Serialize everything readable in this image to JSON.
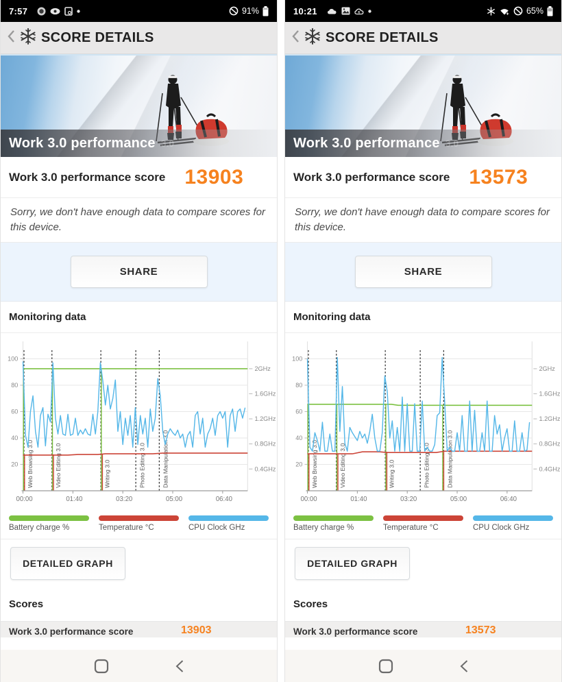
{
  "accent_orange": "#f6821f",
  "phones": [
    {
      "status": {
        "time": "7:57",
        "battery_pct": "91%"
      },
      "header": {
        "title": "SCORE DETAILS"
      },
      "hero": {
        "title": "Work 3.0 performance",
        "watermark": "3.0"
      },
      "score": {
        "label": "Work 3.0 performance score",
        "value": "13903"
      },
      "notice": "Sorry, we don't have enough data to compare scores for this device.",
      "share_label": "SHARE",
      "monitoring_label": "Monitoring data",
      "detailed_graph_label": "DETAILED GRAPH",
      "scores_label": "Scores",
      "bottom_row": {
        "label": "Work 3.0 performance score",
        "value": "13903"
      }
    },
    {
      "status": {
        "time": "10:21",
        "battery_pct": "65%"
      },
      "header": {
        "title": "SCORE DETAILS"
      },
      "hero": {
        "title": "Work 3.0 performance",
        "watermark": "3.0"
      },
      "score": {
        "label": "Work 3.0 performance score",
        "value": "13573"
      },
      "notice": "Sorry, we don't have enough data to compare scores for this device.",
      "share_label": "SHARE",
      "monitoring_label": "Monitoring data",
      "detailed_graph_label": "DETAILED GRAPH",
      "scores_label": "Scores",
      "bottom_row": {
        "label": "Work 3.0 performance score",
        "value": "13573"
      }
    }
  ],
  "chart_data": [
    {
      "type": "line",
      "title": "Monitoring data (left device)",
      "xmax": 450,
      "ymax": 110,
      "x_ticks": [
        {
          "label": "00:00",
          "t": 0
        },
        {
          "label": "01:40",
          "t": 100
        },
        {
          "label": "03:20",
          "t": 200
        },
        {
          "label": "05:00",
          "t": 300
        },
        {
          "label": "06:40",
          "t": 400
        }
      ],
      "left_ticks": [
        20,
        40,
        60,
        80,
        100
      ],
      "right_ticks": [
        {
          "label": "2GHz",
          "v": 92.5
        },
        {
          "label": "1.6GHz",
          "v": 73.5
        },
        {
          "label": "1.2GHz",
          "v": 54.5
        },
        {
          "label": "0.8GHz",
          "v": 35.5
        },
        {
          "label": "0.4GHz",
          "v": 16.5
        }
      ],
      "phases": [
        {
          "label": "Web Browsing 3.0",
          "t": 2
        },
        {
          "label": "Video Editing 3.0",
          "t": 58
        },
        {
          "label": "Writing 3.0",
          "t": 156
        },
        {
          "label": "Photo Editing 3.0",
          "t": 226
        },
        {
          "label": "Data Manipulation 3.0",
          "t": 273
        }
      ],
      "legend": [
        {
          "label": "Battery charge %",
          "color": "#7cc142"
        },
        {
          "label": "Temperature °C",
          "color": "#cc4437"
        },
        {
          "label": "CPU Clock GHz",
          "color": "#55b7e8"
        }
      ],
      "battery_points": [
        [
          0,
          92.5
        ],
        [
          450,
          92.5
        ]
      ],
      "temperature_points": [
        [
          0,
          27
        ],
        [
          90,
          27
        ],
        [
          110,
          27.5
        ],
        [
          150,
          27.5
        ],
        [
          165,
          28
        ],
        [
          260,
          28
        ],
        [
          280,
          28.5
        ],
        [
          450,
          28.5
        ]
      ],
      "green_vlines": [
        {
          "t": 1,
          "v": 92.5
        },
        {
          "t": 59,
          "v": 92.5
        },
        {
          "t": 157,
          "v": 92.5
        }
      ],
      "red_vlines": [
        {
          "t": 1,
          "v": 27
        },
        {
          "t": 59,
          "v": 27.5
        },
        {
          "t": 157,
          "v": 28
        }
      ],
      "cpu": {
        "dt": 5,
        "values": [
          98,
          42,
          33,
          60,
          72,
          45,
          33,
          57,
          63,
          34,
          58,
          52,
          97,
          55,
          43,
          57,
          43,
          42,
          58,
          42,
          43,
          55,
          42,
          46,
          43,
          47,
          43,
          42,
          58,
          43,
          60,
          97,
          83,
          65,
          80,
          62,
          70,
          84,
          45,
          60,
          35,
          55,
          42,
          57,
          33,
          63,
          35,
          57,
          43,
          55,
          33,
          62,
          45,
          55,
          85,
          72,
          45,
          35,
          43,
          47,
          44,
          42,
          46,
          40,
          43,
          33,
          42,
          45,
          33,
          57,
          60,
          43,
          55,
          33,
          43,
          47,
          55,
          42,
          57,
          60,
          55,
          60,
          33,
          57,
          62,
          45,
          60,
          62,
          55,
          63
        ]
      }
    },
    {
      "type": "line",
      "title": "Monitoring data (right device)",
      "xmax": 450,
      "ymax": 110,
      "x_ticks": [
        {
          "label": "00:00",
          "t": 0
        },
        {
          "label": "01:40",
          "t": 100
        },
        {
          "label": "03:20",
          "t": 200
        },
        {
          "label": "05:00",
          "t": 300
        },
        {
          "label": "06:40",
          "t": 400
        }
      ],
      "left_ticks": [
        20,
        40,
        60,
        80,
        100
      ],
      "right_ticks": [
        {
          "label": "2GHz",
          "v": 92.5
        },
        {
          "label": "1.6GHz",
          "v": 73.5
        },
        {
          "label": "1.2GHz",
          "v": 54.5
        },
        {
          "label": "0.8GHz",
          "v": 35.5
        },
        {
          "label": "0.4GHz",
          "v": 16.5
        }
      ],
      "phases": [
        {
          "label": "Web Browsing 3.0",
          "t": 2
        },
        {
          "label": "Video Editing 3.0",
          "t": 58
        },
        {
          "label": "Writing 3.0",
          "t": 156
        },
        {
          "label": "Photo Editing 3.0",
          "t": 226
        },
        {
          "label": "Data Manipulation 3.0",
          "t": 273
        }
      ],
      "legend": [
        {
          "label": "Battery charge %",
          "color": "#7cc142"
        },
        {
          "label": "Temperature °C",
          "color": "#cc4437"
        },
        {
          "label": "CPU Clock GHz",
          "color": "#55b7e8"
        }
      ],
      "battery_points": [
        [
          0,
          65.5
        ],
        [
          168,
          65.5
        ],
        [
          182,
          64.8
        ],
        [
          450,
          64.8
        ]
      ],
      "temperature_points": [
        [
          0,
          28
        ],
        [
          90,
          28
        ],
        [
          110,
          29.5
        ],
        [
          145,
          29.5
        ],
        [
          160,
          29
        ],
        [
          258,
          29
        ],
        [
          275,
          30
        ],
        [
          450,
          30
        ]
      ],
      "green_vlines": [
        {
          "t": 1,
          "v": 65.5
        },
        {
          "t": 59,
          "v": 65.5
        },
        {
          "t": 157,
          "v": 65
        },
        {
          "t": 271,
          "v": 65
        }
      ],
      "red_vlines": [
        {
          "t": 1,
          "v": 28
        },
        {
          "t": 59,
          "v": 28
        },
        {
          "t": 157,
          "v": 29.5
        },
        {
          "t": 271,
          "v": 29.5
        }
      ],
      "cpu": {
        "dt": 5,
        "values": [
          100,
          33,
          30,
          44,
          38,
          30,
          52,
          30,
          30,
          43,
          30,
          30,
          101,
          45,
          79,
          36,
          30,
          48,
          44,
          41,
          38,
          45,
          40,
          43,
          36,
          45,
          58,
          40,
          30,
          30,
          44,
          87,
          75,
          40,
          53,
          30,
          48,
          30,
          71,
          30,
          66,
          30,
          30,
          66,
          30,
          30,
          68,
          30,
          33,
          30,
          30,
          35,
          57,
          59,
          101,
          67,
          30,
          33,
          30,
          30,
          44,
          30,
          57,
          30,
          30,
          68,
          30,
          61,
          30,
          30,
          44,
          30,
          68,
          30,
          30,
          57,
          43,
          50,
          30,
          40,
          47,
          30,
          30,
          53,
          30,
          30,
          44,
          30,
          31,
          52
        ]
      }
    }
  ]
}
